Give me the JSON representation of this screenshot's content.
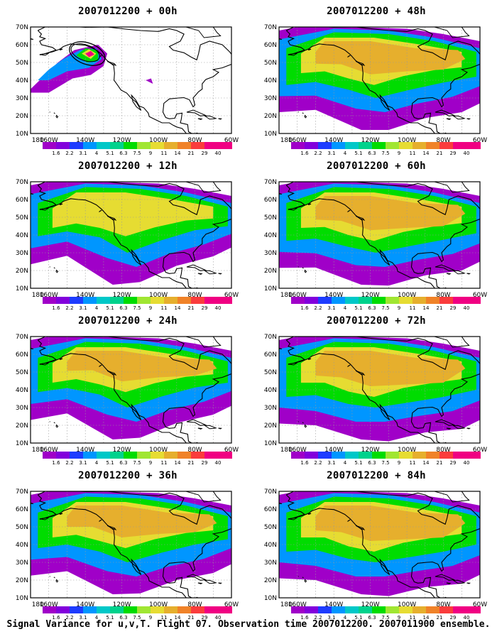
{
  "caption": "Signal Variance for u,v,T. Flight 07. Observation time 2007012200. 2007011900 ensemble.",
  "panels": [
    {
      "title": "2007012200 + 00h",
      "lead_hours": 0
    },
    {
      "title": "2007012200 + 48h",
      "lead_hours": 48
    },
    {
      "title": "2007012200 + 12h",
      "lead_hours": 12
    },
    {
      "title": "2007012200 + 60h",
      "lead_hours": 60
    },
    {
      "title": "2007012200 + 24h",
      "lead_hours": 24
    },
    {
      "title": "2007012200 + 72h",
      "lead_hours": 72
    },
    {
      "title": "2007012200 + 36h",
      "lead_hours": 36
    },
    {
      "title": "2007012200 + 84h",
      "lead_hours": 84
    }
  ],
  "map": {
    "lon_labels": [
      "180",
      "160W",
      "140W",
      "120W",
      "100W",
      "80W",
      "60W"
    ],
    "lat_labels": [
      "10N",
      "20N",
      "30N",
      "40N",
      "50N",
      "60N",
      "70N"
    ],
    "lon_range": [
      -170,
      -60
    ],
    "lat_range": [
      10,
      70
    ]
  },
  "colorbar": {
    "labels": [
      "1.6",
      "2.2",
      "3.1",
      "4",
      "5.1",
      "6.3",
      "7.5",
      "9",
      "11",
      "14",
      "21",
      "29",
      "40"
    ],
    "colors": [
      "#a000c8",
      "#8200dc",
      "#1e3cff",
      "#0096ff",
      "#00c8c8",
      "#00d28c",
      "#00dc00",
      "#a0e632",
      "#e6dc32",
      "#e6af2d",
      "#f08228",
      "#fa3c3c",
      "#f00082"
    ]
  }
}
